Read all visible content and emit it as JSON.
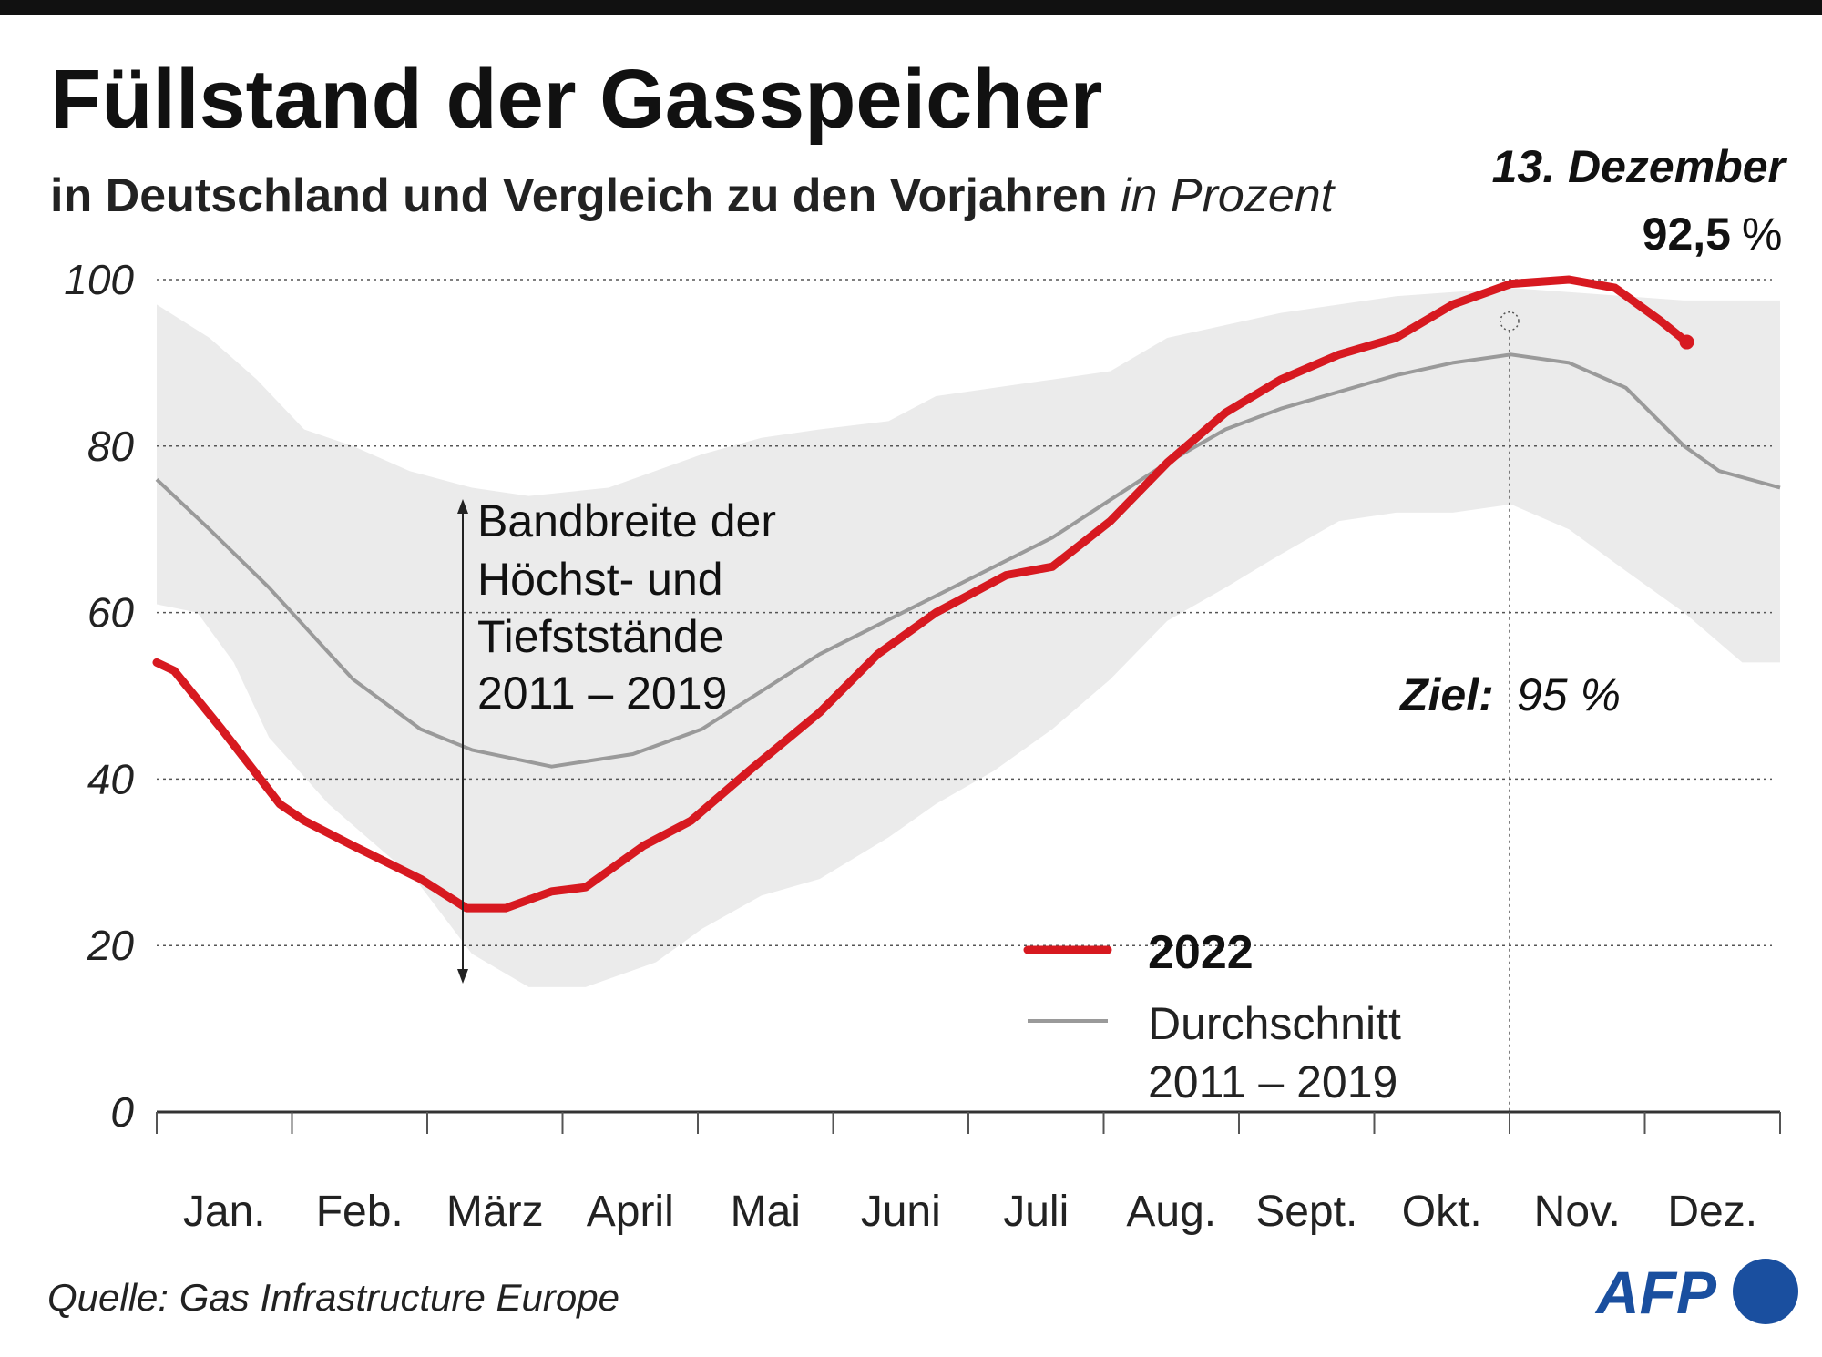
{
  "header": {
    "title": "Füllstand der Gasspeicher",
    "subtitle": "in Deutschland und Vergleich zu den Vorjahren",
    "subtitle_unit": "in Prozent",
    "latest_date": "13. Dezember",
    "latest_value": "92,5",
    "latest_unit": "%"
  },
  "annotations": {
    "band_lines": [
      "Bandbreite der",
      "Höchst- und",
      "Tiefststände",
      "2011 – 2019"
    ],
    "target_label": "Ziel:",
    "target_value": "95 %"
  },
  "footer": {
    "source": "Quelle: Gas Infrastructure Europe",
    "logo": "AFP"
  },
  "colors": {
    "series_2022": "#d71920",
    "average": "#9a9a9a",
    "band": "#ebebeb",
    "logo": "#1a4f9f"
  },
  "chart_data": {
    "type": "line",
    "title": "Füllstand der Gasspeicher",
    "xlabel": "",
    "ylabel": "in Prozent",
    "ylim": [
      0,
      100
    ],
    "yticks": [
      0,
      20,
      40,
      60,
      80,
      100
    ],
    "x_unit": "months since Jan 1",
    "xlim": [
      0,
      12
    ],
    "categories": [
      "Jan.",
      "Feb.",
      "März",
      "April",
      "Mai",
      "Juni",
      "Juli",
      "Aug.",
      "Sept.",
      "Okt.",
      "Nov.",
      "Dez."
    ],
    "grid": true,
    "legend_position": "bottom-right",
    "target": {
      "x": 10.0,
      "y": 95
    },
    "series": [
      {
        "name": "2022",
        "x": [
          0,
          0.13,
          0.48,
          0.91,
          1.09,
          1.45,
          1.95,
          2.29,
          2.58,
          2.92,
          3.17,
          3.6,
          3.95,
          4.38,
          4.9,
          5.33,
          5.76,
          6.28,
          6.62,
          7.05,
          7.47,
          7.9,
          8.31,
          8.74,
          9.16,
          9.58,
          10.01,
          10.44,
          10.78,
          11.12,
          11.31
        ],
        "y": [
          54,
          53,
          46,
          37,
          35,
          32,
          28,
          24.5,
          24.5,
          26.5,
          27,
          32,
          35,
          41,
          48,
          55,
          60,
          64.5,
          65.5,
          71,
          78,
          84,
          88,
          91,
          93,
          97,
          99.5,
          100,
          99,
          95,
          92.5
        ]
      },
      {
        "name": "Durchschnitt 2011 – 2019",
        "x": [
          0,
          0.39,
          0.83,
          1.45,
          1.95,
          2.33,
          2.92,
          3.52,
          4.03,
          4.9,
          5.76,
          6.62,
          7.47,
          7.9,
          8.31,
          9.16,
          9.58,
          10.01,
          10.44,
          10.86,
          11.29,
          11.55,
          12
        ],
        "y": [
          76,
          70,
          63,
          52,
          46,
          43.5,
          41.5,
          43,
          46,
          55,
          62,
          69,
          78,
          82,
          84.5,
          88.5,
          90,
          91,
          90,
          87,
          80,
          77,
          75
        ]
      },
      {
        "name": "Bandbreite Höchststände 2011 – 2019",
        "x": [
          0,
          0.39,
          0.74,
          1.09,
          1.45,
          1.87,
          2.33,
          2.75,
          3.34,
          4.03,
          4.47,
          4.9,
          5.41,
          5.76,
          6.62,
          7.05,
          7.47,
          8.31,
          9.16,
          10.01,
          10.86,
          11.29,
          12
        ],
        "y": [
          97,
          93,
          88,
          82,
          80,
          77,
          75,
          74,
          75,
          79,
          81,
          82,
          83,
          86,
          88,
          89,
          93,
          96,
          98,
          99,
          98,
          97.5,
          97.5
        ]
      },
      {
        "name": "Bandbreite Tiefststände 2011 – 2019",
        "x": [
          0,
          0.3,
          0.57,
          0.83,
          1.27,
          1.91,
          2.33,
          2.75,
          3.17,
          3.69,
          4.03,
          4.47,
          4.9,
          5.41,
          5.76,
          6.19,
          6.62,
          7.05,
          7.47,
          7.9,
          8.31,
          8.74,
          9.16,
          9.58,
          10.01,
          10.44,
          10.86,
          11.29,
          11.72,
          12
        ],
        "y": [
          61,
          60,
          54,
          45,
          37,
          28,
          19,
          15,
          15,
          18,
          22,
          26,
          28,
          33,
          37,
          41,
          46,
          52,
          59,
          63,
          67,
          71,
          72,
          72,
          73,
          70,
          65,
          60,
          54,
          54
        ]
      }
    ]
  }
}
